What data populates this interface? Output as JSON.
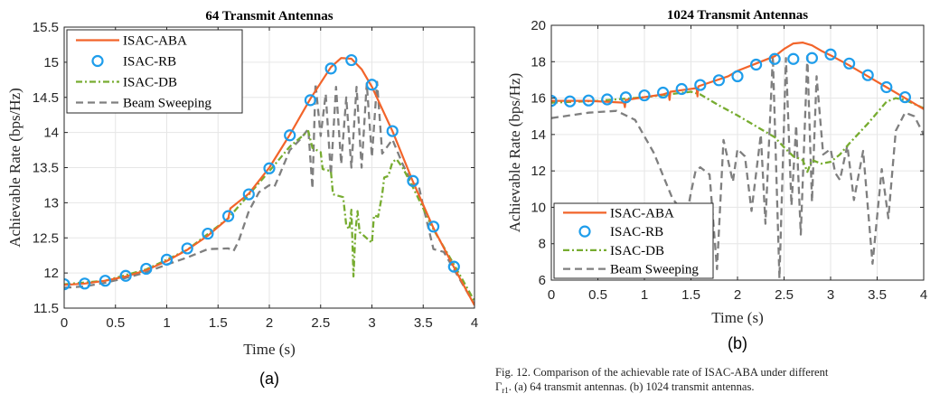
{
  "figure": {
    "caption_line1": "Fig. 12.  Comparison of the achievable rate of ISAC-ABA under different",
    "caption_gamma": "Γ",
    "caption_sub": "r1",
    "caption_line2": ". (a) 64 transmit antennas. (b) 1024 transmit antennas.",
    "colors": {
      "aba": "#F2642A",
      "rb": "#1E9DEB",
      "db": "#77AC30",
      "bs": "#7F7F7F"
    }
  },
  "chart_data": [
    {
      "type": "line",
      "panel_label": "(a)",
      "title": "64 Transmit Antennas",
      "xlabel": "Time (s)",
      "ylabel": "Achievable Rate (bps/Hz)",
      "xlim": [
        0,
        4
      ],
      "ylim": [
        11.5,
        15.5
      ],
      "xticks": [
        0,
        0.5,
        1,
        1.5,
        2,
        2.5,
        3,
        3.5,
        4
      ],
      "xtick_labels": [
        "0",
        "0.5",
        "1",
        "1.5",
        "2",
        "2.5",
        "3",
        "3.5",
        "4"
      ],
      "yticks": [
        11.5,
        12,
        12.5,
        13,
        13.5,
        14,
        14.5,
        15,
        15.5
      ],
      "ytick_labels": [
        "11.5",
        "12",
        "12.5",
        "13",
        "13.5",
        "14",
        "14.5",
        "15",
        "15.5"
      ],
      "grid": true,
      "legend_position": "top-left",
      "legend": [
        "ISAC-ABA",
        "ISAC-RB",
        "ISAC-DB",
        "Beam Sweeping"
      ],
      "series": [
        {
          "name": "ISAC-ABA",
          "style": "solid",
          "color_key": "aba",
          "x": [
            0,
            0.2,
            0.4,
            0.6,
            0.8,
            1.0,
            1.2,
            1.4,
            1.6,
            1.62,
            1.8,
            2.0,
            2.2,
            2.4,
            2.6,
            2.7,
            2.8,
            2.9,
            3.0,
            3.2,
            3.4,
            3.6,
            3.8,
            4.0
          ],
          "y": [
            11.83,
            11.85,
            11.89,
            11.95,
            12.04,
            12.17,
            12.33,
            12.53,
            12.78,
            12.92,
            13.13,
            13.5,
            13.97,
            14.48,
            14.93,
            15.06,
            15.05,
            14.9,
            14.65,
            14.02,
            13.3,
            12.64,
            12.08,
            11.54
          ]
        },
        {
          "name": "ISAC-RB",
          "style": "markers",
          "color_key": "rb",
          "x": [
            0,
            0.2,
            0.4,
            0.6,
            0.8,
            1.0,
            1.2,
            1.4,
            1.6,
            1.8,
            2.0,
            2.2,
            2.4,
            2.6,
            2.8,
            3.0,
            3.2,
            3.4,
            3.6,
            3.8
          ],
          "y": [
            11.84,
            11.85,
            11.89,
            11.96,
            12.06,
            12.19,
            12.35,
            12.56,
            12.81,
            13.12,
            13.49,
            13.96,
            14.46,
            14.91,
            15.03,
            14.68,
            14.02,
            13.31,
            12.66,
            12.09
          ]
        },
        {
          "name": "ISAC-DB",
          "style": "dashdot",
          "color_key": "db",
          "x": [
            0,
            0.4,
            0.8,
            1.2,
            1.6,
            2.0,
            2.2,
            2.38,
            2.42,
            2.5,
            2.52,
            2.6,
            2.62,
            2.72,
            2.75,
            2.78,
            2.8,
            2.82,
            2.84,
            2.86,
            2.88,
            2.9,
            3.0,
            3.02,
            3.06,
            3.1,
            3.12,
            3.16,
            3.2,
            3.24,
            3.3,
            3.4,
            3.6,
            3.8,
            4.0
          ],
          "y": [
            11.84,
            11.89,
            12.05,
            12.33,
            12.78,
            13.45,
            13.8,
            14.02,
            13.78,
            13.72,
            13.48,
            13.45,
            13.12,
            13.08,
            12.68,
            12.62,
            12.9,
            11.95,
            12.6,
            12.88,
            12.58,
            12.56,
            12.43,
            12.82,
            12.8,
            13.12,
            13.36,
            13.38,
            13.58,
            13.62,
            13.5,
            13.22,
            12.62,
            12.12,
            11.6
          ]
        },
        {
          "name": "Beam Sweeping",
          "style": "dashed",
          "color_key": "bs",
          "x": [
            0,
            0.2,
            0.4,
            0.6,
            0.8,
            1.0,
            1.2,
            1.4,
            1.6,
            1.65,
            1.7,
            1.8,
            1.9,
            2.0,
            2.05,
            2.1,
            2.2,
            2.3,
            2.38,
            2.42,
            2.45,
            2.5,
            2.55,
            2.6,
            2.65,
            2.7,
            2.75,
            2.8,
            2.85,
            2.9,
            2.95,
            3.0,
            3.05,
            3.1,
            3.2,
            3.3,
            3.4,
            3.45,
            3.5,
            3.6,
            3.7,
            3.8,
            4.0
          ],
          "y": [
            11.79,
            11.81,
            11.86,
            11.93,
            12.01,
            12.12,
            12.22,
            12.34,
            12.35,
            12.31,
            12.45,
            12.88,
            13.15,
            13.25,
            13.23,
            13.4,
            13.75,
            13.9,
            14.05,
            13.2,
            14.7,
            13.95,
            14.55,
            13.4,
            14.65,
            13.55,
            14.5,
            13.5,
            14.65,
            13.5,
            14.7,
            13.65,
            14.72,
            13.7,
            13.9,
            13.55,
            13.25,
            13.28,
            12.95,
            12.34,
            12.3,
            12.05,
            11.55
          ]
        }
      ]
    },
    {
      "type": "line",
      "panel_label": "(b)",
      "title": "1024 Transmit Antennas",
      "xlabel": "Time (s)",
      "ylabel": "Achievable Rate (bps/Hz)",
      "xlim": [
        0,
        4
      ],
      "ylim": [
        6,
        20
      ],
      "xticks": [
        0,
        0.5,
        1,
        1.5,
        2,
        2.5,
        3,
        3.5,
        4
      ],
      "xtick_labels": [
        "0",
        "0.5",
        "1",
        "1.5",
        "2",
        "2.5",
        "3",
        "3.5",
        "4"
      ],
      "yticks": [
        6,
        8,
        10,
        12,
        14,
        16,
        18,
        20
      ],
      "ytick_labels": [
        "6",
        "8",
        "10",
        "12",
        "14",
        "16",
        "18",
        "20"
      ],
      "grid": true,
      "legend_position": "bottom-left",
      "legend": [
        "ISAC-ABA",
        "ISAC-RB",
        "ISAC-DB",
        "Beam Sweeping"
      ],
      "series": [
        {
          "name": "ISAC-ABA",
          "style": "solid",
          "color_key": "aba",
          "x": [
            0,
            0.4,
            0.78,
            0.79,
            0.8,
            1.2,
            1.26,
            1.27,
            1.28,
            1.56,
            1.57,
            1.58,
            1.9,
            2.0,
            2.2,
            2.4,
            2.5,
            2.6,
            2.7,
            2.8,
            2.9,
            3.0,
            3.2,
            3.4,
            3.6,
            3.8,
            4.0
          ],
          "y": [
            15.85,
            15.85,
            15.75,
            15.5,
            15.9,
            16.2,
            16.3,
            15.9,
            16.35,
            16.55,
            16.1,
            16.65,
            17.2,
            17.5,
            17.9,
            18.3,
            18.7,
            19.0,
            19.05,
            18.9,
            18.6,
            18.35,
            17.8,
            17.2,
            16.6,
            16.0,
            15.4
          ]
        },
        {
          "name": "ISAC-RB",
          "style": "markers",
          "color_key": "rb",
          "x": [
            0,
            0.2,
            0.4,
            0.6,
            0.8,
            1.0,
            1.2,
            1.4,
            1.6,
            1.8,
            2.0,
            2.2,
            2.4,
            2.6,
            2.8,
            3.0,
            3.2,
            3.4,
            3.6,
            3.8
          ],
          "y": [
            15.85,
            15.82,
            15.87,
            15.93,
            16.04,
            16.15,
            16.3,
            16.5,
            16.72,
            16.98,
            17.2,
            17.84,
            18.15,
            18.15,
            18.2,
            18.4,
            17.9,
            17.26,
            16.6,
            16.05
          ]
        },
        {
          "name": "ISAC-DB",
          "style": "dashdot",
          "color_key": "db",
          "x": [
            0,
            0.5,
            1.0,
            1.5,
            1.6,
            1.8,
            2.0,
            2.2,
            2.4,
            2.5,
            2.6,
            2.7,
            2.75,
            2.8,
            2.9,
            3.0,
            3.1,
            3.2,
            3.4,
            3.5,
            3.6,
            3.7,
            3.8,
            4.0
          ],
          "y": [
            15.75,
            15.85,
            16.05,
            16.35,
            16.2,
            15.6,
            15.05,
            14.45,
            13.85,
            13.3,
            12.8,
            12.6,
            11.95,
            12.6,
            12.4,
            12.5,
            12.9,
            13.5,
            14.6,
            15.2,
            15.8,
            16.0,
            15.9,
            15.45
          ]
        },
        {
          "name": "Beam Sweeping",
          "style": "dashed",
          "color_key": "bs",
          "x": [
            0,
            0.4,
            0.7,
            0.9,
            1.1,
            1.3,
            1.45,
            1.5,
            1.55,
            1.6,
            1.7,
            1.78,
            1.85,
            1.95,
            2.0,
            2.08,
            2.15,
            2.25,
            2.3,
            2.38,
            2.45,
            2.52,
            2.58,
            2.63,
            2.68,
            2.75,
            2.8,
            2.85,
            2.92,
            3.0,
            3.05,
            3.1,
            3.18,
            3.25,
            3.35,
            3.45,
            3.55,
            3.62,
            3.7,
            3.8,
            3.9,
            4.0
          ],
          "y": [
            14.9,
            15.2,
            15.3,
            14.8,
            13.0,
            10.5,
            9.5,
            10.8,
            12.0,
            12.2,
            11.8,
            6.6,
            13.7,
            11.4,
            13.2,
            12.8,
            9.8,
            14.0,
            9.1,
            18.3,
            6.1,
            18.2,
            10.1,
            14.5,
            8.5,
            18.3,
            10.3,
            17.2,
            12.9,
            13.2,
            11.9,
            11.5,
            13.4,
            10.4,
            13.1,
            6.9,
            12.1,
            9.4,
            14.2,
            15.2,
            15.0,
            14.0
          ]
        }
      ]
    }
  ]
}
